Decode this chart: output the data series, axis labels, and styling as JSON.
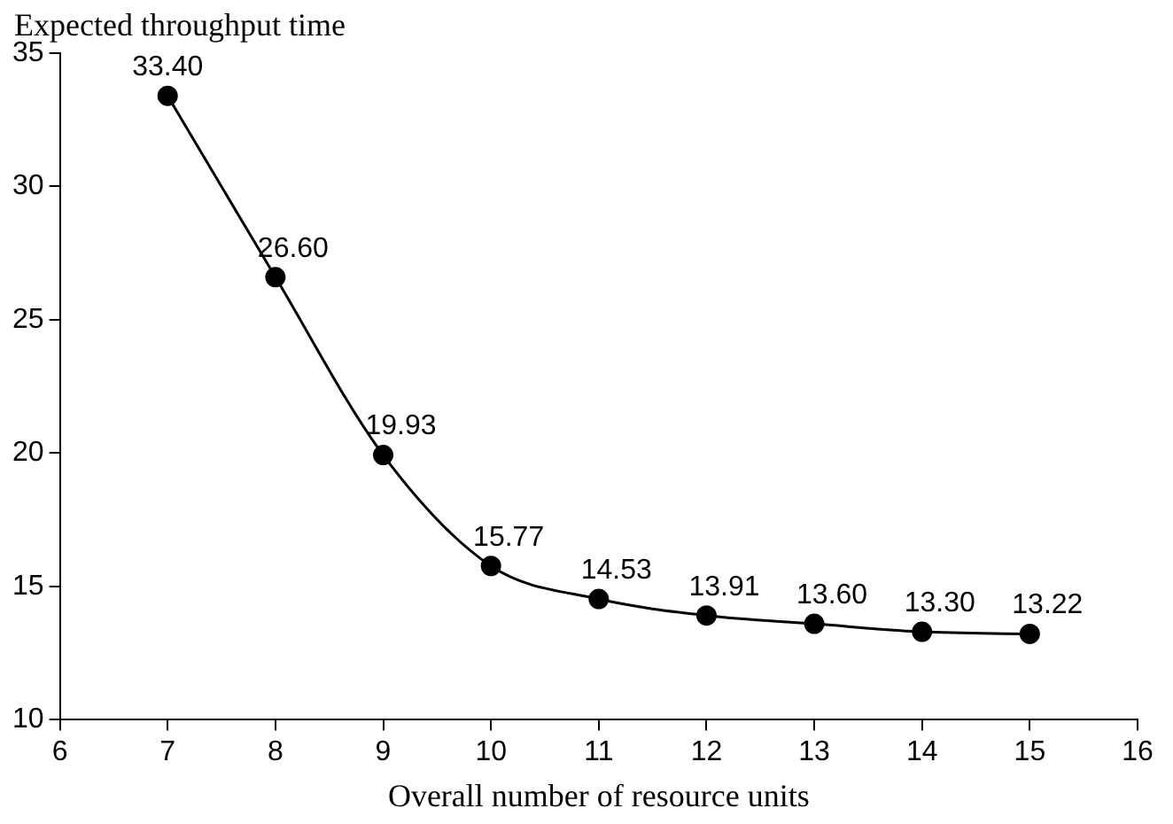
{
  "chart_data": {
    "type": "line",
    "ylabel": "Expected throughput time",
    "xlabel": "Overall number of resource units",
    "x": [
      7,
      8,
      9,
      10,
      11,
      12,
      13,
      14,
      15
    ],
    "series": [
      {
        "color": "#000000",
        "values": [
          33.4,
          26.6,
          19.93,
          15.77,
          14.53,
          13.91,
          13.6,
          13.3,
          13.22
        ],
        "value_labels": [
          "33.40",
          "26.60",
          "19.93",
          "15.77",
          "14.53",
          "13.91",
          "13.60",
          "13.30",
          "13.22"
        ]
      }
    ],
    "xlim": [
      6,
      16
    ],
    "xticks": [
      6,
      7,
      8,
      9,
      10,
      11,
      12,
      13,
      14,
      15,
      16
    ],
    "ylim": [
      10,
      35
    ],
    "yticks": [
      10,
      15,
      20,
      25,
      30,
      35
    ],
    "grid": false,
    "legend": false,
    "marker": "circle",
    "line_style": "solid"
  }
}
